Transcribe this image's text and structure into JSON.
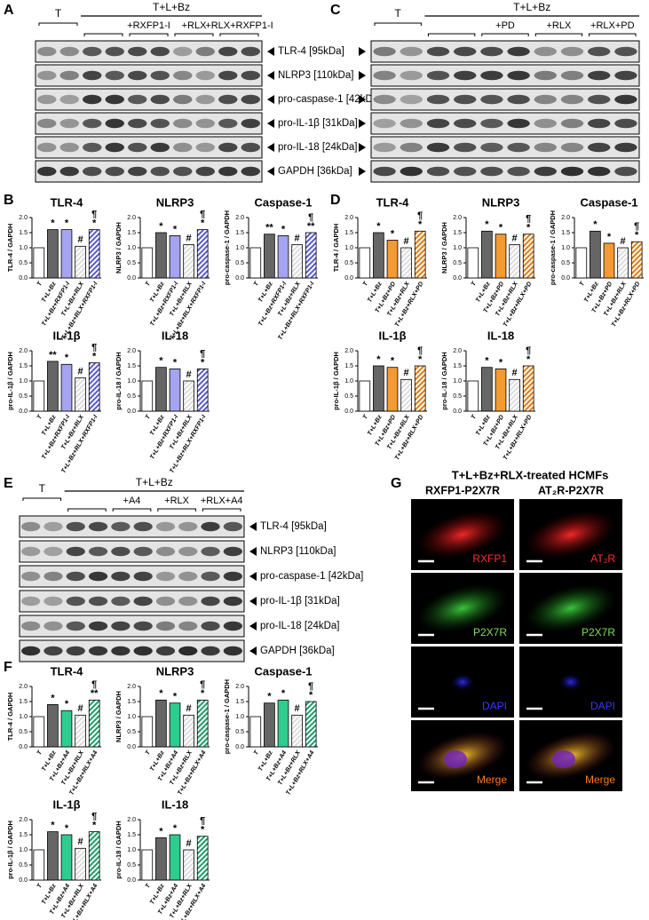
{
  "panel_labels": [
    "A",
    "B",
    "C",
    "D",
    "E",
    "F",
    "G"
  ],
  "blots": [
    {
      "control": "T",
      "treatment": "T+L+Bz",
      "subgroups": [
        "+RXFP1-I",
        "+RLX",
        "+RLX+RXFP1-I"
      ],
      "rows": [
        "TLR-4 [95kDa]",
        "NLRP3 [110kDa]",
        "pro-caspase-1 [42kDa]",
        "pro-IL-1β [31kDa]",
        "pro-IL-18 [24kDa]",
        "GAPDH [36kDa]"
      ]
    },
    {
      "control": "T",
      "treatment": "T+L+Bz",
      "subgroups": [
        "+PD",
        "+RLX",
        "+RLX+PD"
      ]
    },
    {
      "control": "T",
      "treatment": "T+L+Bz",
      "subgroups": [
        "+A4",
        "+RLX",
        "+RLX+A4"
      ],
      "rows": [
        "TLR-4 [95kDa]",
        "NLRP3 [110kDa]",
        "pro-caspase-1 [42kDa]",
        "pro-IL-1β [31kDa]",
        "pro-IL-18 [24kDa]",
        "GAPDH [36kDa]"
      ]
    }
  ],
  "chart_data": [
    {
      "type": "bar",
      "title": "TLR-4",
      "ylabel": "TLR-4 / GAPDH",
      "categories": [
        "T",
        "T+L+Bz",
        "T+L+Bz+RXFP1-I",
        "T+L+Bz+RLX",
        "T+L+Bz+RLX+RXFP1-I"
      ],
      "values": [
        1.0,
        1.6,
        1.6,
        1.05,
        1.6
      ],
      "colors": [
        "#ffffff",
        "#666666",
        "#a4a4f0",
        "#dddddd",
        "#5a5ad0"
      ],
      "hatched": [
        false,
        false,
        false,
        true,
        true
      ],
      "annotations": [
        null,
        [
          "*"
        ],
        [
          "*"
        ],
        [
          "#"
        ],
        [
          "¶",
          "*"
        ]
      ],
      "ylim": [
        0,
        2
      ],
      "yticks": [
        {
          "value": 0,
          "label": "0.0"
        },
        0.5,
        {
          "value": 1,
          "label": "1.0"
        },
        1.5,
        {
          "value": 2,
          "label": "2.0"
        }
      ]
    },
    {
      "type": "bar",
      "title": "NLRP3",
      "ylabel": "NLRP3 / GAPDH",
      "categories": [
        "T",
        "T+L+Bz",
        "T+L+Bz+RXFP1-I",
        "T+L+Bz+RLX",
        "T+L+Bz+RLX+RXFP1-I"
      ],
      "values": [
        1.0,
        1.5,
        1.4,
        1.1,
        1.6
      ],
      "colors": [
        "#ffffff",
        "#666666",
        "#a4a4f0",
        "#dddddd",
        "#5a5ad0"
      ],
      "hatched": [
        false,
        false,
        false,
        true,
        true
      ],
      "annotations": [
        null,
        [
          "*"
        ],
        [
          "*"
        ],
        [
          "#"
        ],
        [
          "¶",
          "*"
        ]
      ],
      "ylim": [
        0,
        2
      ],
      "yticks": [
        {
          "value": 0,
          "label": "0.0"
        },
        0.5,
        {
          "value": 1,
          "label": "1.0"
        },
        1.5,
        {
          "value": 2,
          "label": "2.0"
        }
      ]
    },
    {
      "type": "bar",
      "title": "Caspase-1",
      "ylabel": "pro-caspase-1 / GAPDH",
      "categories": [
        "T",
        "T+L+Bz",
        "T+L+Bz+RXFP1-I",
        "T+L+Bz+RLX",
        "T+L+Bz+RLX+RXFP1-I"
      ],
      "values": [
        1.0,
        1.45,
        1.4,
        1.1,
        1.5
      ],
      "colors": [
        "#ffffff",
        "#666666",
        "#a4a4f0",
        "#dddddd",
        "#5a5ad0"
      ],
      "hatched": [
        false,
        false,
        false,
        true,
        true
      ],
      "annotations": [
        null,
        [
          "**"
        ],
        [
          "*"
        ],
        [
          "#"
        ],
        [
          "¶",
          "**"
        ]
      ],
      "ylim": [
        0,
        2
      ],
      "yticks": [
        {
          "value": 0,
          "label": "0.0"
        },
        0.5,
        {
          "value": 1,
          "label": "1.0"
        },
        1.5,
        {
          "value": 2,
          "label": "2.0"
        }
      ]
    },
    {
      "type": "bar",
      "title": "IL-1β",
      "ylabel": "pro-IL-1β / GAPDH",
      "categories": [
        "T",
        "T+L+Bz",
        "T+L+Bz+RXFP1-I",
        "T+L+Bz+RLX",
        "T+L+Bz+RLX+RXFP1-I"
      ],
      "values": [
        1.0,
        1.65,
        1.55,
        1.1,
        1.6
      ],
      "colors": [
        "#ffffff",
        "#666666",
        "#a4a4f0",
        "#dddddd",
        "#5a5ad0"
      ],
      "hatched": [
        false,
        false,
        false,
        true,
        true
      ],
      "annotations": [
        null,
        [
          "**"
        ],
        [
          "*"
        ],
        [
          "#"
        ],
        [
          "¶",
          "*"
        ]
      ],
      "ylim": [
        0,
        2
      ],
      "yticks": [
        {
          "value": 0,
          "label": "0.0"
        },
        0.5,
        {
          "value": 1,
          "label": "1.0"
        },
        1.5,
        {
          "value": 2,
          "label": "2.0"
        }
      ]
    },
    {
      "type": "bar",
      "title": "IL-18",
      "ylabel": "pro-IL-18 / GAPDH",
      "categories": [
        "T",
        "T+L+Bz",
        "T+L+Bz+RXFP1-I",
        "T+L+Bz+RLX",
        "T+L+Bz+RLX+RXFP1-I"
      ],
      "values": [
        1.0,
        1.45,
        1.4,
        1.0,
        1.4
      ],
      "colors": [
        "#ffffff",
        "#666666",
        "#a4a4f0",
        "#dddddd",
        "#5a5ad0"
      ],
      "hatched": [
        false,
        false,
        false,
        true,
        true
      ],
      "annotations": [
        null,
        [
          "*"
        ],
        [
          "*"
        ],
        [
          "#"
        ],
        [
          "¶",
          "*"
        ]
      ],
      "ylim": [
        0,
        2
      ],
      "yticks": [
        {
          "value": 0,
          "label": "0.0"
        },
        0.5,
        {
          "value": 1,
          "label": "1.0"
        },
        1.5,
        {
          "value": 2,
          "label": "2.0"
        }
      ]
    },
    {
      "type": "bar",
      "title": "TLR-4",
      "ylabel": "TLR-4 / GAPDH",
      "categories": [
        "T",
        "T+L+Bz",
        "T+L+Bz+PD",
        "T+L+Bz+RLX",
        "T+L+Bz+RLX+PD"
      ],
      "values": [
        1.0,
        1.5,
        1.25,
        1.0,
        1.55
      ],
      "colors": [
        "#ffffff",
        "#666666",
        "#f39a33",
        "#dddddd",
        "#e07b10"
      ],
      "hatched": [
        false,
        false,
        false,
        true,
        true
      ],
      "annotations": [
        null,
        [
          "*"
        ],
        [
          "*"
        ],
        [
          "#"
        ],
        [
          "¶",
          "*"
        ]
      ],
      "ylim": [
        0,
        2
      ],
      "yticks": [
        {
          "value": 0,
          "label": "0.0"
        },
        0.5,
        {
          "value": 1,
          "label": "1.0"
        },
        1.5,
        {
          "value": 2,
          "label": "2.0"
        }
      ]
    },
    {
      "type": "bar",
      "title": "NLRP3",
      "ylabel": "NLRP3 / GAPDH",
      "categories": [
        "T",
        "T+L+Bz",
        "T+L+Bz+PD",
        "T+L+Bz+RLX",
        "T+L+Bz+RLX+PD"
      ],
      "values": [
        1.0,
        1.55,
        1.45,
        1.1,
        1.45
      ],
      "colors": [
        "#ffffff",
        "#666666",
        "#f39a33",
        "#dddddd",
        "#e07b10"
      ],
      "hatched": [
        false,
        false,
        false,
        true,
        true
      ],
      "annotations": [
        null,
        [
          "*"
        ],
        [
          "*"
        ],
        [
          "#"
        ],
        [
          "¶",
          "*"
        ]
      ],
      "ylim": [
        0,
        2
      ],
      "yticks": [
        {
          "value": 0,
          "label": "0.0"
        },
        0.5,
        {
          "value": 1,
          "label": "1.0"
        },
        1.5,
        {
          "value": 2,
          "label": "2.0"
        }
      ]
    },
    {
      "type": "bar",
      "title": "Caspase-1",
      "ylabel": "pro-caspase-1 / GAPDH",
      "categories": [
        "T",
        "T+L+Bz",
        "T+L+Bz+PD",
        "T+L+Bz+RLX",
        "T+L+Bz+RLX+PD"
      ],
      "values": [
        1.0,
        1.55,
        1.15,
        1.0,
        1.2
      ],
      "colors": [
        "#ffffff",
        "#666666",
        "#f39a33",
        "#dddddd",
        "#e07b10"
      ],
      "hatched": [
        false,
        false,
        false,
        true,
        true
      ],
      "annotations": [
        null,
        [
          "*"
        ],
        [
          "*"
        ],
        [
          "#"
        ],
        [
          "¶",
          "*"
        ]
      ],
      "ylim": [
        0,
        2
      ],
      "yticks": [
        {
          "value": 0,
          "label": "0.0"
        },
        0.5,
        {
          "value": 1,
          "label": "1.0"
        },
        1.5,
        {
          "value": 2,
          "label": "2.0"
        }
      ]
    },
    {
      "type": "bar",
      "title": "IL-1β",
      "ylabel": "pro-IL-1β / GAPDH",
      "categories": [
        "T",
        "T+L+Bz",
        "T+L+Bz+PD",
        "T+L+Bz+RLX",
        "T+L+Bz+RLX+PD"
      ],
      "values": [
        1.0,
        1.5,
        1.45,
        1.05,
        1.5
      ],
      "colors": [
        "#ffffff",
        "#666666",
        "#f39a33",
        "#dddddd",
        "#e07b10"
      ],
      "hatched": [
        false,
        false,
        false,
        true,
        true
      ],
      "annotations": [
        null,
        [
          "*"
        ],
        [
          "*"
        ],
        [
          "#"
        ],
        [
          "¶",
          "*"
        ]
      ],
      "ylim": [
        0,
        2
      ],
      "yticks": [
        {
          "value": 0,
          "label": "0.0"
        },
        0.5,
        {
          "value": 1,
          "label": "1.0"
        },
        1.5,
        {
          "value": 2,
          "label": "2.0"
        }
      ]
    },
    {
      "type": "bar",
      "title": "IL-18",
      "ylabel": "pro-IL-18 / GAPDH",
      "categories": [
        "T",
        "T+L+Bz",
        "T+L+Bz+PD",
        "T+L+Bz+RLX",
        "T+L+Bz+RLX+PD"
      ],
      "values": [
        1.0,
        1.45,
        1.4,
        1.05,
        1.5
      ],
      "colors": [
        "#ffffff",
        "#666666",
        "#f39a33",
        "#dddddd",
        "#e07b10"
      ],
      "hatched": [
        false,
        false,
        false,
        true,
        true
      ],
      "annotations": [
        null,
        [
          "*"
        ],
        [
          "*"
        ],
        [
          "#"
        ],
        [
          "¶",
          "*"
        ]
      ],
      "ylim": [
        0,
        2
      ],
      "yticks": [
        {
          "value": 0,
          "label": "0.0"
        },
        0.5,
        {
          "value": 1,
          "label": "1.0"
        },
        1.5,
        {
          "value": 2,
          "label": "2.0"
        }
      ]
    },
    {
      "type": "bar",
      "title": "TLR-4",
      "ylabel": "TLR-4 / GAPDH",
      "categories": [
        "T",
        "T+L+Bz",
        "T+L+Bz+A4",
        "T+L+Bz+RLX",
        "T+L+Bz+RLX+A4"
      ],
      "values": [
        1.0,
        1.4,
        1.2,
        1.05,
        1.55
      ],
      "colors": [
        "#ffffff",
        "#666666",
        "#2ecc8f",
        "#dddddd",
        "#1a9e6a"
      ],
      "hatched": [
        false,
        false,
        false,
        true,
        true
      ],
      "annotations": [
        null,
        [
          "*"
        ],
        [
          "*"
        ],
        [
          "#"
        ],
        [
          "¶",
          "**"
        ]
      ],
      "ylim": [
        0,
        2
      ],
      "yticks": [
        {
          "value": 0,
          "label": "0.0"
        },
        0.5,
        {
          "value": 1,
          "label": "1.0"
        },
        1.5,
        {
          "value": 2,
          "label": "2.0"
        }
      ]
    },
    {
      "type": "bar",
      "title": "NLRP3",
      "ylabel": "NLRP3 / GAPDH",
      "categories": [
        "T",
        "T+L+Bz",
        "T+L+Bz+A4",
        "T+L+Bz+RLX",
        "T+L+Bz+RLX+A4"
      ],
      "values": [
        1.0,
        1.55,
        1.45,
        1.05,
        1.55
      ],
      "colors": [
        "#ffffff",
        "#666666",
        "#2ecc8f",
        "#dddddd",
        "#1a9e6a"
      ],
      "hatched": [
        false,
        false,
        false,
        true,
        true
      ],
      "annotations": [
        null,
        [
          "*"
        ],
        [
          "*"
        ],
        [
          "#"
        ],
        [
          "¶",
          "*"
        ]
      ],
      "ylim": [
        0,
        2
      ],
      "yticks": [
        {
          "value": 0,
          "label": "0.0"
        },
        0.5,
        {
          "value": 1,
          "label": "1.0"
        },
        1.5,
        {
          "value": 2,
          "label": "2.0"
        }
      ]
    },
    {
      "type": "bar",
      "title": "Caspase-1",
      "ylabel": "pro-caspase-1 / GAPDH",
      "categories": [
        "T",
        "T+L+Bz",
        "T+L+Bz+A4",
        "T+L+Bz+RLX",
        "T+L+Bz+RLX+A4"
      ],
      "values": [
        1.0,
        1.45,
        1.55,
        1.05,
        1.5
      ],
      "colors": [
        "#ffffff",
        "#666666",
        "#2ecc8f",
        "#dddddd",
        "#1a9e6a"
      ],
      "hatched": [
        false,
        false,
        false,
        true,
        true
      ],
      "annotations": [
        null,
        [
          "*"
        ],
        [
          "*"
        ],
        [
          "#"
        ],
        [
          "¶",
          "*"
        ]
      ],
      "ylim": [
        0,
        2
      ],
      "yticks": [
        {
          "value": 0,
          "label": "0.0"
        },
        0.5,
        {
          "value": 1,
          "label": "1.0"
        },
        1.5,
        {
          "value": 2,
          "label": "2.0"
        }
      ]
    },
    {
      "type": "bar",
      "title": "IL-1β",
      "ylabel": "pro-IL-1β / GAPDH",
      "categories": [
        "T",
        "T+L+Bz",
        "T+L+Bz+A4",
        "T+L+Bz+RLX",
        "T+L+Bz+RLX+A4"
      ],
      "values": [
        1.0,
        1.6,
        1.5,
        1.05,
        1.6
      ],
      "colors": [
        "#ffffff",
        "#666666",
        "#2ecc8f",
        "#dddddd",
        "#1a9e6a"
      ],
      "hatched": [
        false,
        false,
        false,
        true,
        true
      ],
      "annotations": [
        null,
        [
          "*"
        ],
        [
          "*"
        ],
        [
          "#"
        ],
        [
          "¶",
          "*"
        ]
      ],
      "ylim": [
        0,
        2
      ],
      "yticks": [
        {
          "value": 0,
          "label": "0.0"
        },
        0.5,
        {
          "value": 1,
          "label": "1.0"
        },
        1.5,
        {
          "value": 2,
          "label": "2.0"
        }
      ]
    },
    {
      "type": "bar",
      "title": "IL-18",
      "ylabel": "pro-IL-18 / GAPDH",
      "categories": [
        "T",
        "T+L+Bz",
        "T+L+Bz+A4",
        "T+L+Bz+RLX",
        "T+L+Bz+RLX+A4"
      ],
      "values": [
        1.0,
        1.4,
        1.5,
        1.0,
        1.45
      ],
      "colors": [
        "#ffffff",
        "#666666",
        "#2ecc8f",
        "#dddddd",
        "#1a9e6a"
      ],
      "hatched": [
        false,
        false,
        false,
        true,
        true
      ],
      "annotations": [
        null,
        [
          "*"
        ],
        [
          "*"
        ],
        [
          "#"
        ],
        [
          "¶",
          "*"
        ]
      ],
      "ylim": [
        0,
        2
      ],
      "yticks": [
        {
          "value": 0,
          "label": "0.0"
        },
        0.5,
        {
          "value": 1,
          "label": "1.0"
        },
        1.5,
        {
          "value": 2,
          "label": "2.0"
        }
      ]
    }
  ],
  "microscopy": {
    "title": "T+L+Bz+RLX-treated HCMFs",
    "columns": [
      {
        "title": "RXFP1-P2X7R",
        "labels": [
          "RXFP1",
          "P2X7R",
          "DAPI",
          "Merge"
        ]
      },
      {
        "title": "AT₂R-P2X7R",
        "labels": [
          "AT₂R",
          "P2X7R",
          "DAPI",
          "Merge"
        ]
      }
    ]
  }
}
